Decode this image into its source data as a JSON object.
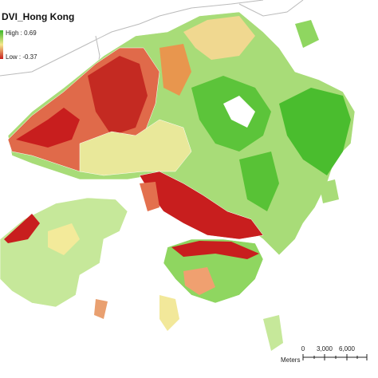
{
  "header": {
    "title": "DVI_Hong Kong"
  },
  "legend": {
    "high": "High : 0.69",
    "low": "Low : -0.37"
  },
  "scale_bar": {
    "labels": [
      "0",
      "3,000",
      "6,000"
    ],
    "unit": "Meters"
  }
}
